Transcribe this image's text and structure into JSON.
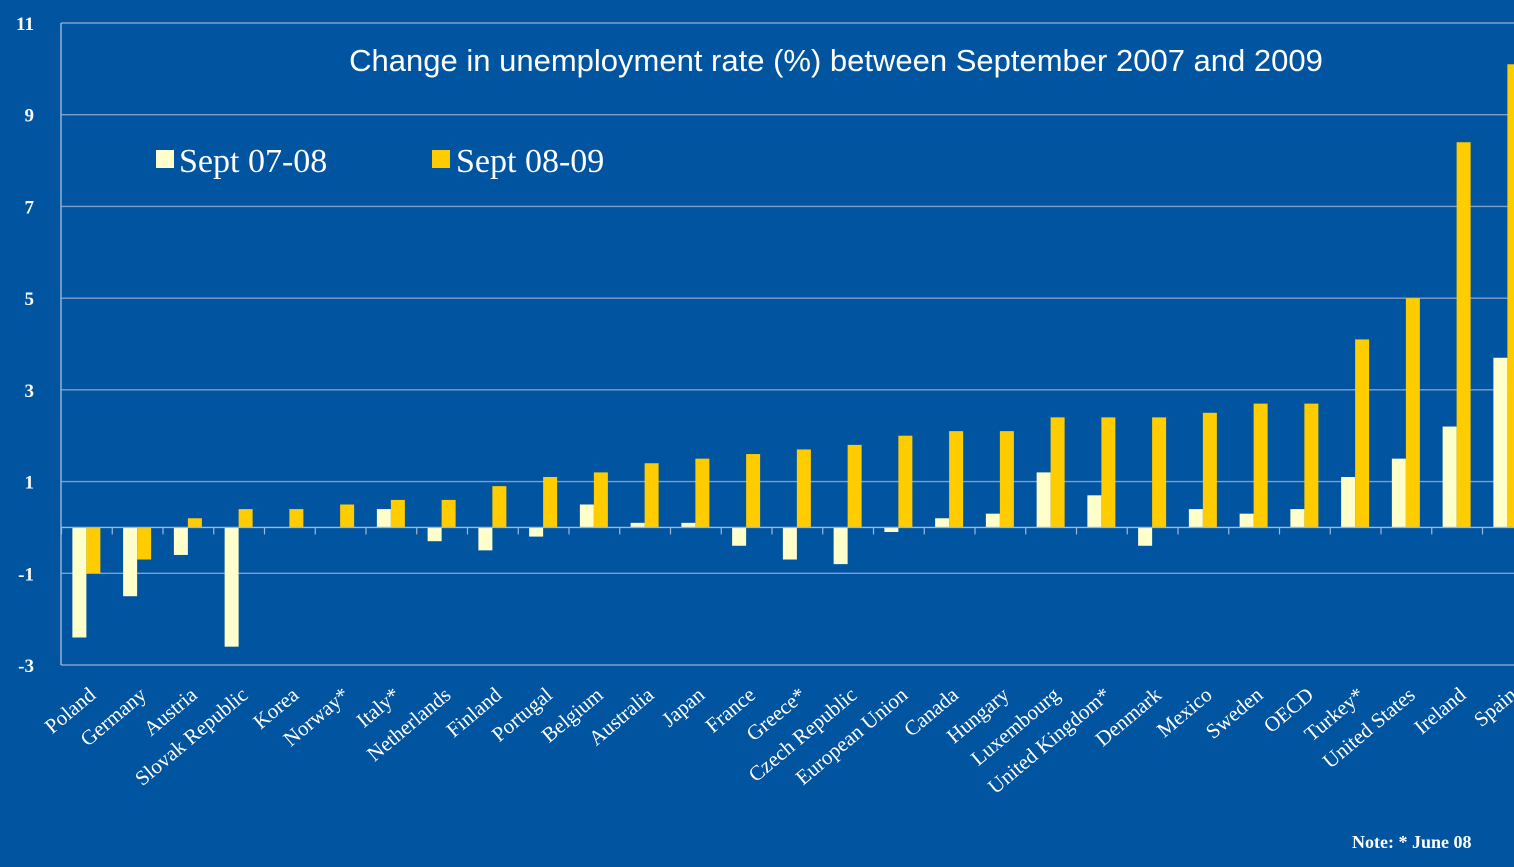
{
  "colors": {
    "background": "#0054a0",
    "series_1": "#ffffcc",
    "series_2": "#ffcc00",
    "gridline": "#7f9fc8",
    "axis": "#9fb8d8",
    "text": "#ffffff"
  },
  "chart_data": {
    "type": "bar",
    "title": "Change in unemployment rate (%) between September 2007 and 2009",
    "xlabel": "",
    "ylabel": "",
    "ylim": [
      -3,
      11
    ],
    "yticks": [
      -3,
      -1,
      1,
      3,
      5,
      7,
      9,
      11
    ],
    "ytick_labels": [
      "-3",
      "-1",
      "1",
      "3",
      "5",
      "7",
      "9",
      "11"
    ],
    "grid": true,
    "legend_position": "top-left",
    "categories": [
      "Poland",
      "Germany",
      "Austria",
      "Slovak Republic",
      "Korea",
      "Norway*",
      "Italy*",
      "Netherlands",
      "Finland",
      "Portugal",
      "Belgium",
      "Australia",
      "Japan",
      "France",
      "Greece*",
      "Czech Republic",
      "European Union",
      "Canada",
      "Hungary",
      "Luxembourg",
      "United Kingdom*",
      "Denmark",
      "Mexico",
      "Sweden",
      "OECD",
      "Turkey*",
      "United States",
      "Ireland",
      "Spain"
    ],
    "series": [
      {
        "name": "Sept 07-08",
        "values": [
          -2.4,
          -1.5,
          -0.6,
          -2.6,
          0.0,
          0.0,
          0.4,
          -0.3,
          -0.5,
          -0.2,
          0.5,
          0.1,
          0.1,
          -0.4,
          -0.7,
          -0.8,
          -0.1,
          0.2,
          0.3,
          1.2,
          0.7,
          -0.4,
          0.4,
          0.3,
          0.4,
          1.1,
          1.5,
          2.2,
          3.7
        ]
      },
      {
        "name": "Sept 08-09",
        "values": [
          -1.0,
          -0.7,
          0.2,
          0.4,
          0.4,
          0.5,
          0.6,
          0.6,
          0.9,
          1.1,
          1.2,
          1.4,
          1.5,
          1.6,
          1.7,
          1.8,
          2.0,
          2.1,
          2.1,
          2.4,
          2.4,
          2.4,
          2.5,
          2.7,
          2.7,
          4.1,
          5.0,
          8.4,
          10.1
        ]
      }
    ],
    "note": "Note: * June 08"
  }
}
